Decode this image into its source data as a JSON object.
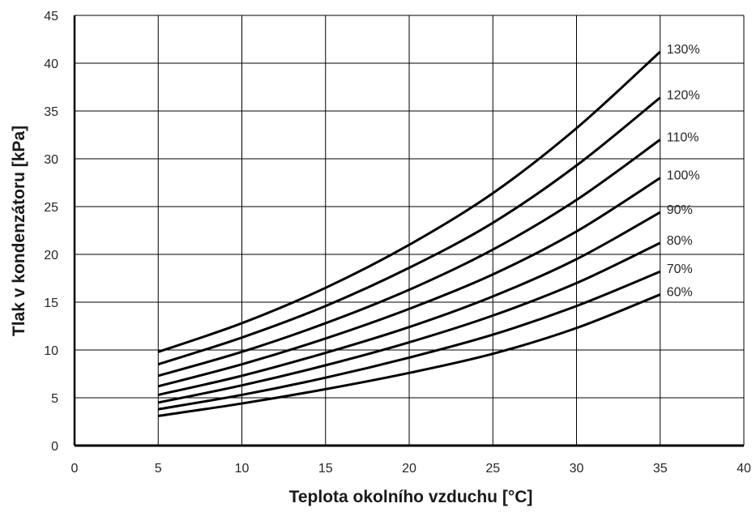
{
  "chart_data": {
    "type": "line",
    "xlabel": "Teplota okolního vzduchu [°C]",
    "ylabel": "Tlak v kondenzátoru [kPa]",
    "xlim": [
      0,
      40
    ],
    "ylim": [
      0,
      45
    ],
    "xticks": [
      "0",
      "5",
      "10",
      "15",
      "20",
      "25",
      "30",
      "35",
      "40"
    ],
    "yticks": [
      "0",
      "5",
      "10",
      "15",
      "20",
      "25",
      "30",
      "35",
      "40",
      "45"
    ],
    "grid": true,
    "line_color": "#000000",
    "x": [
      5,
      10,
      15,
      20,
      25,
      30,
      35
    ],
    "series": [
      {
        "name": "130%",
        "values": [
          9.8,
          12.8,
          16.5,
          21.0,
          26.4,
          33.2,
          41.2
        ]
      },
      {
        "name": "120%",
        "values": [
          8.5,
          11.3,
          14.6,
          18.6,
          23.3,
          29.3,
          36.4
        ]
      },
      {
        "name": "110%",
        "values": [
          7.3,
          9.8,
          12.8,
          16.3,
          20.5,
          25.7,
          32.0
        ]
      },
      {
        "name": "100%",
        "values": [
          6.2,
          8.5,
          11.2,
          14.3,
          17.9,
          22.4,
          28.0
        ]
      },
      {
        "name": "90%",
        "values": [
          5.3,
          7.3,
          9.7,
          12.4,
          15.6,
          19.5,
          24.4
        ]
      },
      {
        "name": "80%",
        "values": [
          4.5,
          6.3,
          8.4,
          10.8,
          13.6,
          17.0,
          21.2
        ]
      },
      {
        "name": "70%",
        "values": [
          3.8,
          5.3,
          7.1,
          9.2,
          11.6,
          14.6,
          18.2
        ]
      },
      {
        "name": "60%",
        "values": [
          3.1,
          4.4,
          5.9,
          7.6,
          9.6,
          12.3,
          15.8
        ]
      }
    ]
  }
}
